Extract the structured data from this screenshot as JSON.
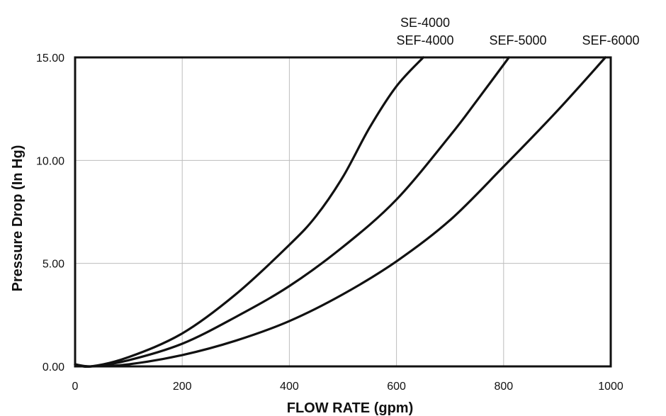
{
  "chart_data": {
    "type": "line",
    "title": "",
    "xlabel": "FLOW RATE (gpm)",
    "ylabel": "Pressure Drop (In Hg)",
    "xlim": [
      0,
      1000
    ],
    "ylim": [
      0,
      15
    ],
    "xticks": [
      0,
      200,
      400,
      600,
      800,
      1000
    ],
    "xtick_labels": [
      "0",
      "200",
      "400",
      "600",
      "800",
      "1000"
    ],
    "yticks": [
      0,
      5,
      10,
      15
    ],
    "ytick_labels": [
      "0.00",
      "5.00",
      "10.00",
      "15.00"
    ],
    "grid": true,
    "series": [
      {
        "labels": [
          "SE-4000",
          "SEF-4000"
        ],
        "x": [
          0,
          30,
          100,
          200,
          300,
          400,
          450,
          500,
          550,
          600,
          650
        ],
        "y": [
          0.1,
          0.0,
          0.45,
          1.6,
          3.5,
          5.9,
          7.3,
          9.2,
          11.6,
          13.6,
          15.0
        ]
      },
      {
        "labels": [
          "SEF-5000"
        ],
        "x": [
          0,
          30,
          100,
          200,
          300,
          400,
          500,
          600,
          700,
          750,
          810
        ],
        "y": [
          0.1,
          0.0,
          0.3,
          1.1,
          2.4,
          3.9,
          5.8,
          8.1,
          11.2,
          12.9,
          15.0
        ]
      },
      {
        "labels": [
          "SEF-6000"
        ],
        "x": [
          0,
          30,
          100,
          200,
          300,
          400,
          500,
          600,
          700,
          800,
          900,
          990
        ],
        "y": [
          0.1,
          0.0,
          0.1,
          0.55,
          1.25,
          2.2,
          3.5,
          5.1,
          7.1,
          9.7,
          12.4,
          15.0
        ]
      }
    ]
  }
}
